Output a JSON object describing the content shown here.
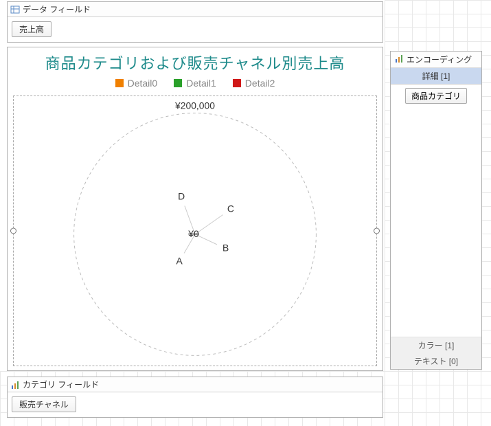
{
  "panels": {
    "data_fields": {
      "title": "データ フィールド",
      "chip": "売上高"
    },
    "category_fields": {
      "title": "カテゴリ フィールド",
      "chip": "販売チャネル"
    },
    "encoding": {
      "title": "エンコーディング",
      "section_detail": "詳細 [1]",
      "detail_chip": "商品カテゴリ",
      "color_label": "カラー [1]",
      "text_label": "テキスト [0]"
    }
  },
  "chart": {
    "title": "商品カテゴリおよび販売チャネル別売上高",
    "title_color": "#1d8a8a",
    "legend": [
      {
        "label": "Detail0",
        "color": "#f08000"
      },
      {
        "label": "Detail1",
        "color": "#2aa02a"
      },
      {
        "label": "Detail2",
        "color": "#d01818"
      }
    ],
    "outer_value_label": "¥200,000",
    "center_value_label": "¥0",
    "axes": [
      {
        "label": "A",
        "angle_deg": 210,
        "len": 0.18
      },
      {
        "label": "B",
        "angle_deg": 115,
        "len": 0.2
      },
      {
        "label": "C",
        "angle_deg": 55,
        "len": 0.28
      },
      {
        "label": "D",
        "angle_deg": 340,
        "len": 0.25
      }
    ],
    "circle_radius_ratio": 0.9,
    "colors": {
      "dashed_circle": "#bcbcbc",
      "axis_line": "#cccccc",
      "label": "#333333"
    }
  }
}
